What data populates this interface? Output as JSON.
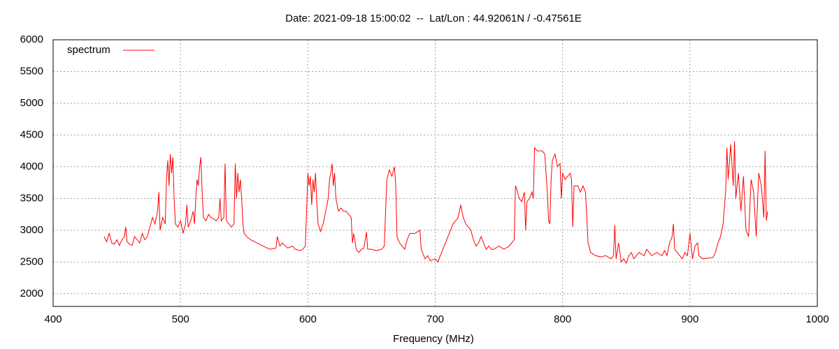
{
  "chart_data": {
    "type": "line",
    "title": "Date: 2021-09-18 15:00:02  --  Lat/Lon : 44.92061N / -0.47561E",
    "x_label": "Frequency (MHz)",
    "xlim": [
      400,
      1000
    ],
    "xticks": [
      400,
      500,
      600,
      700,
      800,
      900,
      1000
    ],
    "ylim": [
      1800,
      6000
    ],
    "yticks": [
      2000,
      2500,
      3000,
      3500,
      4000,
      4500,
      5000,
      5500,
      6000
    ],
    "grid": true,
    "legend": "top-left",
    "x": [
      440,
      442,
      444,
      446,
      448,
      450,
      452,
      454,
      456,
      457,
      458,
      460,
      462,
      464,
      466,
      468,
      470,
      472,
      474,
      476,
      478,
      480,
      482,
      483,
      484,
      486,
      488,
      489,
      490,
      491,
      492,
      493,
      494,
      495,
      496,
      498,
      500,
      502,
      504,
      505,
      506,
      508,
      510,
      511,
      512,
      513,
      514,
      515,
      516,
      517,
      518,
      520,
      522,
      524,
      526,
      528,
      530,
      531,
      532,
      534,
      535,
      536,
      538,
      540,
      542,
      543,
      544,
      545,
      546,
      547,
      548,
      549,
      550,
      552,
      555,
      560,
      565,
      570,
      575,
      576,
      578,
      580,
      584,
      588,
      590,
      594,
      596,
      598,
      599,
      600,
      601,
      602,
      603,
      604,
      605,
      606,
      607,
      608,
      610,
      612,
      614,
      616,
      617,
      618,
      619,
      620,
      621,
      622,
      624,
      626,
      628,
      630,
      632,
      634,
      635,
      636,
      638,
      640,
      642,
      644,
      646,
      647,
      650,
      654,
      658,
      660,
      662,
      664,
      666,
      668,
      669,
      670,
      672,
      674,
      676,
      678,
      680,
      684,
      688,
      689,
      690,
      692,
      694,
      696,
      700,
      702,
      704,
      706,
      710,
      714,
      718,
      720,
      722,
      724,
      728,
      730,
      732,
      734,
      736,
      738,
      740,
      742,
      744,
      746,
      750,
      754,
      758,
      760,
      762,
      763,
      764,
      766,
      768,
      770,
      771,
      772,
      774,
      776,
      777,
      778,
      780,
      784,
      786,
      788,
      789,
      790,
      791,
      792,
      794,
      796,
      798,
      799,
      800,
      802,
      804,
      806,
      807,
      808,
      809,
      812,
      814,
      816,
      818,
      820,
      822,
      826,
      830,
      834,
      838,
      840,
      841,
      842,
      844,
      846,
      848,
      850,
      852,
      854,
      856,
      858,
      860,
      864,
      866,
      868,
      870,
      874,
      878,
      880,
      882,
      884,
      886,
      887,
      888,
      890,
      892,
      894,
      896,
      898,
      900,
      902,
      904,
      906,
      907,
      910,
      914,
      918,
      920,
      922,
      924,
      926,
      928,
      929,
      930,
      932,
      934,
      935,
      936,
      938,
      940,
      942,
      944,
      946,
      948,
      950,
      952,
      954,
      956,
      958,
      959,
      960,
      961
    ],
    "series": [
      {
        "name": "spectrum",
        "color": "#ff0000",
        "values": [
          2900,
          2820,
          2950,
          2800,
          2780,
          2850,
          2760,
          2850,
          2900,
          3050,
          2820,
          2780,
          2760,
          2900,
          2850,
          2800,
          2950,
          2850,
          2900,
          3050,
          3200,
          3100,
          3300,
          3600,
          3000,
          3200,
          3100,
          3800,
          4100,
          3700,
          4200,
          3900,
          4150,
          3500,
          3100,
          3050,
          3150,
          2950,
          3100,
          3400,
          3050,
          3150,
          3300,
          3100,
          3500,
          3800,
          3700,
          4000,
          4150,
          3600,
          3200,
          3150,
          3250,
          3200,
          3180,
          3150,
          3200,
          3500,
          3150,
          3200,
          4050,
          3150,
          3100,
          3050,
          3100,
          4050,
          3500,
          3900,
          3600,
          3800,
          3500,
          3100,
          2950,
          2900,
          2850,
          2800,
          2750,
          2700,
          2720,
          2900,
          2750,
          2800,
          2720,
          2750,
          2700,
          2680,
          2700,
          2750,
          3300,
          3900,
          3700,
          3850,
          3400,
          3800,
          3600,
          3900,
          3450,
          3100,
          2980,
          3100,
          3300,
          3500,
          3800,
          3900,
          4050,
          3700,
          3900,
          3500,
          3300,
          3350,
          3300,
          3300,
          3250,
          3200,
          2800,
          2950,
          2700,
          2650,
          2700,
          2720,
          2970,
          2700,
          2700,
          2680,
          2700,
          2750,
          3800,
          3950,
          3850,
          4000,
          3700,
          2900,
          2800,
          2750,
          2700,
          2850,
          2950,
          2950,
          3000,
          2700,
          2650,
          2550,
          2600,
          2520,
          2550,
          2500,
          2600,
          2700,
          2900,
          3100,
          3200,
          3400,
          3200,
          3100,
          3000,
          2850,
          2750,
          2800,
          2900,
          2800,
          2700,
          2750,
          2700,
          2700,
          2750,
          2700,
          2750,
          2800,
          2850,
          3700,
          3650,
          3500,
          3450,
          3600,
          3000,
          3450,
          3500,
          3600,
          3500,
          4300,
          4250,
          4250,
          4200,
          3600,
          3150,
          3100,
          3800,
          4100,
          4200,
          4000,
          4050,
          3500,
          3900,
          3800,
          3850,
          3900,
          3800,
          3050,
          3700,
          3700,
          3600,
          3700,
          3600,
          2800,
          2650,
          2600,
          2580,
          2600,
          2550,
          2600,
          3080,
          2550,
          2800,
          2500,
          2550,
          2480,
          2600,
          2650,
          2550,
          2600,
          2650,
          2600,
          2700,
          2650,
          2600,
          2650,
          2600,
          2680,
          2600,
          2800,
          2900,
          3100,
          2700,
          2650,
          2600,
          2550,
          2650,
          2600,
          2950,
          2550,
          2750,
          2800,
          2600,
          2550,
          2560,
          2570,
          2650,
          2800,
          2900,
          3100,
          3600,
          4300,
          3800,
          4350,
          3700,
          4400,
          3500,
          3900,
          3300,
          3850,
          3000,
          2900,
          3800,
          3600,
          2900,
          3900,
          3700,
          3200,
          4250,
          3150,
          3300
        ]
      }
    ]
  }
}
